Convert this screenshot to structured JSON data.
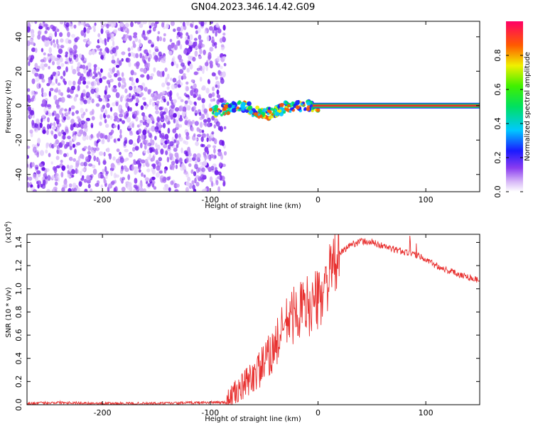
{
  "title": "GN04.2023.346.14.42.G09",
  "colors": {
    "signal": "#e8302f",
    "spectrogram_noise": "#8a3cf0",
    "line_core": "#e8302f"
  },
  "chart_data": [
    {
      "type": "heatmap",
      "name": "spectrogram",
      "xlabel": "Height of straight line (km)",
      "ylabel": "Frequency (Hz)",
      "xlim": [
        -270,
        150
      ],
      "ylim": [
        -50,
        49
      ],
      "x_ticks": [
        -200,
        -100,
        0,
        100
      ],
      "y_ticks": [
        -40,
        -20,
        0,
        20,
        40
      ],
      "noise_region_x": [
        -270,
        -90
      ],
      "signal_track": [
        {
          "x": -100,
          "y": -3
        },
        {
          "x": -90,
          "y": -3
        },
        {
          "x": -80,
          "y": -1
        },
        {
          "x": -70,
          "y": 0
        },
        {
          "x": -60,
          "y": -3
        },
        {
          "x": -50,
          "y": -5
        },
        {
          "x": -40,
          "y": -4
        },
        {
          "x": -30,
          "y": -1
        },
        {
          "x": -20,
          "y": 0
        },
        {
          "x": -10,
          "y": 0
        },
        {
          "x": 0,
          "y": 0
        },
        {
          "x": 150,
          "y": 0
        }
      ],
      "colorbar": {
        "label": "Normalized spectral amplitude",
        "ticks": [
          "0.0",
          "0.2",
          "0.4",
          "0.6",
          "0.8"
        ],
        "tick_values": [
          0.0,
          0.2,
          0.4,
          0.6,
          0.8
        ],
        "range": [
          0,
          1
        ]
      }
    },
    {
      "type": "line",
      "name": "snr",
      "xlabel": "Height of straight line (km)",
      "ylabel": "SNR (10 * v/v)",
      "scale_label": "(x10^4)",
      "xlim": [
        -270,
        150
      ],
      "ylim": [
        0,
        1.47
      ],
      "x_ticks": [
        -200,
        -100,
        0,
        100
      ],
      "y_ticks": [
        "0.0",
        "0.2",
        "0.4",
        "0.6",
        "0.8",
        "1.0",
        "1.2",
        "1.4"
      ],
      "y_tick_values": [
        0.0,
        0.2,
        0.4,
        0.6,
        0.8,
        1.0,
        1.2,
        1.4
      ],
      "series": [
        {
          "x": [
            -270,
            -240,
            -200,
            -150,
            -100,
            -85,
            -80,
            -70,
            -60,
            -50,
            -40,
            -30,
            -20,
            -10,
            0,
            10,
            20,
            30,
            40,
            50,
            60,
            70,
            80,
            90,
            100,
            110,
            120,
            130,
            140,
            150
          ],
          "y": [
            0.01,
            0.02,
            0.01,
            0.01,
            0.02,
            0.02,
            0.08,
            0.15,
            0.25,
            0.35,
            0.5,
            0.7,
            0.8,
            0.85,
            0.9,
            1.1,
            1.3,
            1.38,
            1.41,
            1.4,
            1.37,
            1.34,
            1.32,
            1.3,
            1.25,
            1.2,
            1.16,
            1.13,
            1.1,
            1.07
          ]
        }
      ]
    }
  ]
}
